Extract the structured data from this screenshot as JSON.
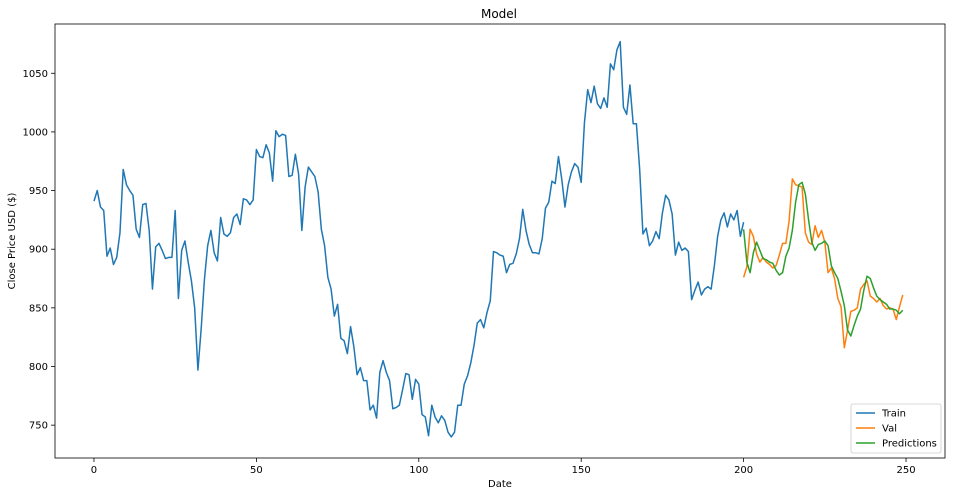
{
  "chart_data": {
    "type": "line",
    "title": "Model",
    "xlabel": "Date",
    "ylabel": "Close Price USD ($)",
    "xlim": [
      -12,
      262
    ],
    "ylim": [
      722,
      1092
    ],
    "xticks": [
      0,
      50,
      100,
      150,
      200,
      250
    ],
    "yticks": [
      750,
      800,
      850,
      900,
      950,
      1000,
      1050
    ],
    "grid": false,
    "legend_position": "lower-right",
    "series": [
      {
        "name": "Train",
        "color": "#1f77b4",
        "x_start": 0,
        "values": [
          941,
          950,
          936,
          933,
          894,
          901,
          887,
          893,
          914,
          968,
          955,
          950,
          946,
          917,
          910,
          938,
          939,
          916,
          866,
          902,
          905,
          899,
          892,
          893,
          893,
          933,
          858,
          899,
          907,
          889,
          873,
          850,
          797,
          832,
          874,
          903,
          916,
          897,
          890,
          927,
          913,
          911,
          914,
          927,
          930,
          921,
          943,
          942,
          938,
          942,
          985,
          979,
          978,
          989,
          982,
          958,
          1001,
          996,
          998,
          997,
          962,
          963,
          981,
          964,
          916,
          953,
          970,
          966,
          962,
          949,
          917,
          903,
          876,
          866,
          843,
          853,
          824,
          822,
          811,
          834,
          817,
          793,
          799,
          788,
          788,
          763,
          767,
          756,
          795,
          805,
          795,
          788,
          764,
          765,
          767,
          780,
          794,
          793,
          772,
          789,
          785,
          759,
          757,
          741,
          767,
          757,
          752,
          758,
          754,
          744,
          740,
          744,
          767,
          767,
          785,
          792,
          803,
          818,
          837,
          840,
          833,
          846,
          856,
          898,
          897,
          895,
          894,
          880,
          887,
          888,
          896,
          909,
          934,
          916,
          904,
          897,
          897,
          896,
          909,
          935,
          940,
          958,
          956,
          979,
          960,
          936,
          955,
          966,
          973,
          970,
          957,
          1008,
          1036,
          1025,
          1039,
          1024,
          1020,
          1029,
          1021,
          1058,
          1053,
          1070,
          1077,
          1021,
          1015,
          1040,
          1007,
          1007,
          968,
          913,
          918,
          903,
          907,
          915,
          909,
          931,
          946,
          942,
          930,
          895,
          906,
          899,
          901,
          898,
          857,
          865,
          872,
          861,
          866,
          868,
          866,
          886,
          911,
          925,
          931,
          919,
          930,
          925,
          933,
          911,
          923
        ]
      },
      {
        "name": "Val",
        "color": "#ff7f0e",
        "x_start": 200,
        "values": [
          876,
          885,
          917,
          911,
          896,
          889,
          893,
          889,
          887,
          884,
          886,
          895,
          905,
          905,
          924,
          960,
          955,
          954,
          953,
          914,
          906,
          904,
          920,
          910,
          916,
          906,
          880,
          884,
          875,
          858,
          851,
          816,
          831,
          847,
          848,
          850,
          866,
          870,
          873,
          860,
          858,
          855,
          858,
          852,
          849,
          850,
          849,
          840,
          851,
          861
        ]
      },
      {
        "name": "Predictions",
        "color": "#2ca02c",
        "x_start": 200,
        "values": [
          917,
          889,
          880,
          897,
          906,
          899,
          892,
          891,
          889,
          888,
          882,
          878,
          880,
          894,
          901,
          916,
          940,
          955,
          957,
          947,
          925,
          906,
          899,
          904,
          905,
          907,
          903,
          886,
          880,
          875,
          864,
          852,
          831,
          826,
          835,
          843,
          849,
          865,
          877,
          875,
          867,
          860,
          857,
          855,
          853,
          849,
          849,
          848,
          845,
          848
        ]
      }
    ]
  }
}
